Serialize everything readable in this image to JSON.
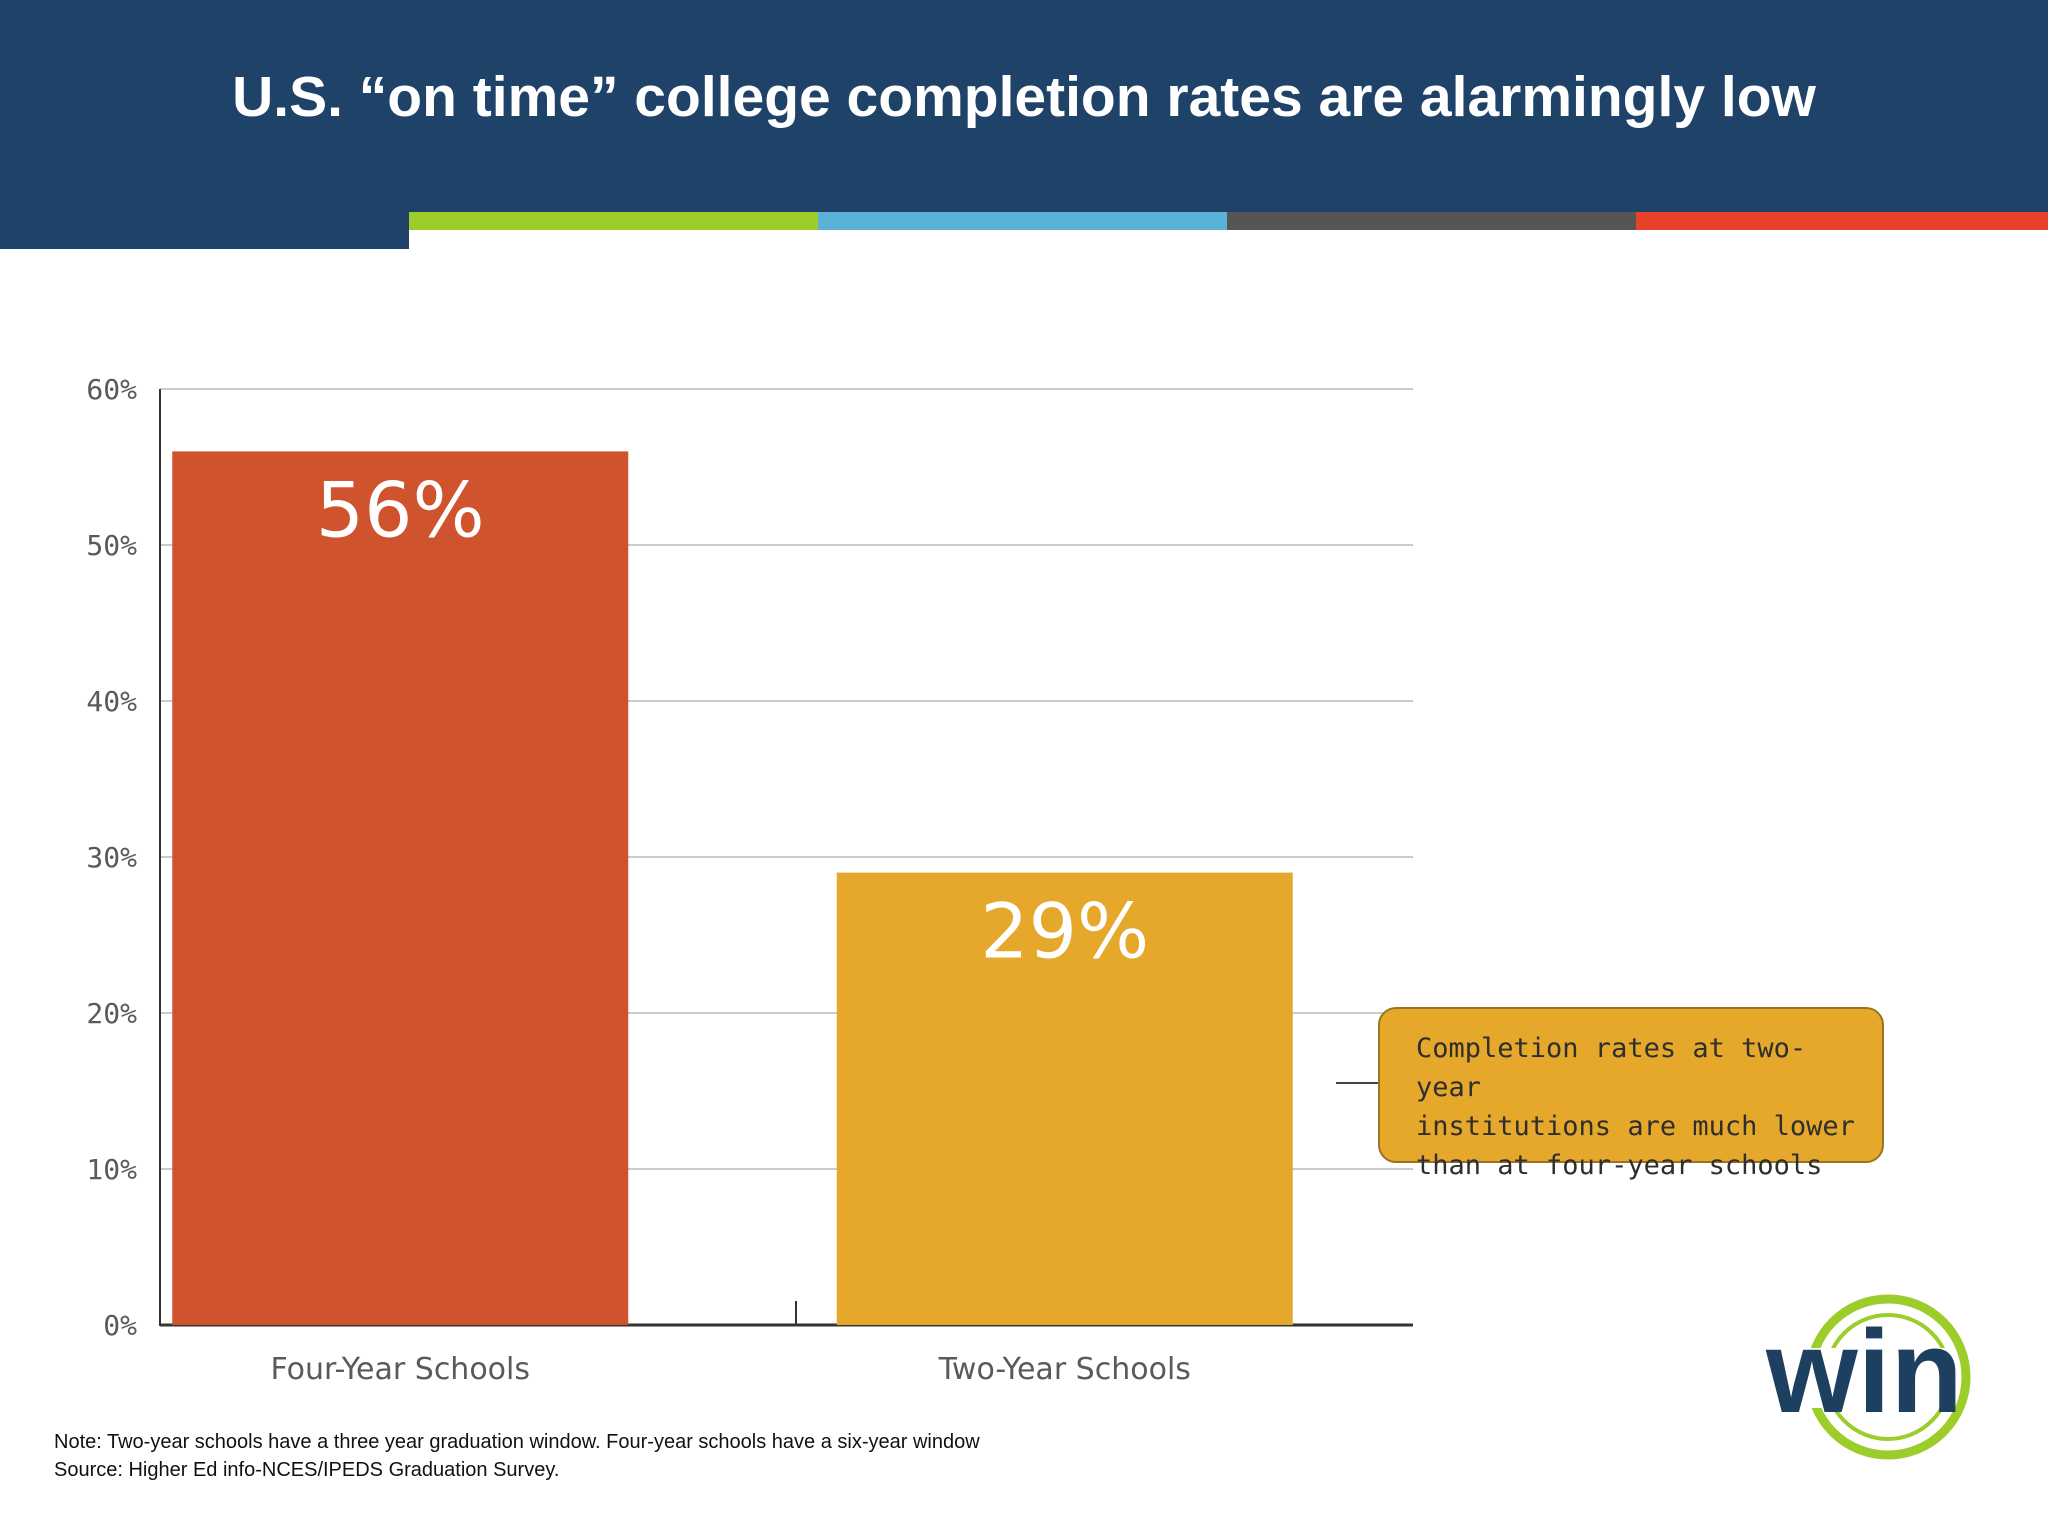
{
  "title": "U.S. “on time” college completion rates are alarmingly low",
  "stripe_colors": [
    "#9ccd2a",
    "#5cb1d8",
    "#555555",
    "#e8412a"
  ],
  "chart_data": {
    "type": "bar",
    "categories": [
      "Four-Year Schools",
      "Two-Year Schools"
    ],
    "values": [
      56,
      29
    ],
    "value_labels": [
      "56%",
      "29%"
    ],
    "bar_colors": [
      "#cf532c",
      "#e6a82a"
    ],
    "ylim": [
      0,
      60
    ],
    "y_ticks": [
      0,
      10,
      20,
      30,
      40,
      50,
      60
    ],
    "y_tick_labels": [
      "0%",
      "10%",
      "20%",
      "30%",
      "40%",
      "50%",
      "60%"
    ],
    "grid": true,
    "xlabel": "",
    "ylabel": ""
  },
  "callout": {
    "text": "Completion rates at two-year\ninstitutions are much lower\nthan at four-year schools"
  },
  "note": {
    "line1": "Note: Two-year schools have a three year graduation window. Four-year schools have a six-year window",
    "line2": "Source: Higher Ed info-NCES/IPEDS Graduation Survey."
  },
  "logo": {
    "text": "win",
    "colors": {
      "ring": "#9ccd2a",
      "text": "#1d3f60"
    }
  }
}
